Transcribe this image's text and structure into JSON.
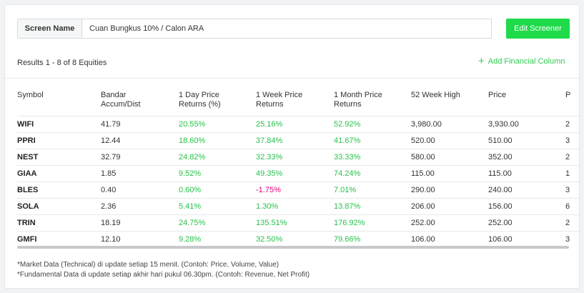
{
  "screen": {
    "label": "Screen Name",
    "value": "Cuan Bungkus 10% / Calon ARA"
  },
  "edit_button": "Edit Screener",
  "results_text": "Results 1 - 8 of 8 Equities",
  "add_column": {
    "icon": "plus-icon",
    "label": "Add Financial Column"
  },
  "colors": {
    "accent": "#1fdb4a",
    "positive": "#27c24a",
    "negative": "#e6007e"
  },
  "table": {
    "columns": [
      "Symbol",
      "Bandar\nAccum/Dist",
      "1 Day Price\nReturns (%)",
      "1 Week Price\nReturns",
      "1 Month Price\nReturns",
      "52 Week High",
      "Price",
      "P"
    ],
    "rows": [
      {
        "symbol": "WIFI",
        "bandar": "41.79",
        "day": "20.55%",
        "week": "25.16%",
        "month": "52.92%",
        "high52": "3,980.00",
        "price": "3,930.00",
        "p": "2"
      },
      {
        "symbol": "PPRI",
        "bandar": "12.44",
        "day": "18.60%",
        "week": "37.84%",
        "month": "41.67%",
        "high52": "520.00",
        "price": "510.00",
        "p": "3"
      },
      {
        "symbol": "NEST",
        "bandar": "32.79",
        "day": "24.82%",
        "week": "32.33%",
        "month": "33.33%",
        "high52": "580.00",
        "price": "352.00",
        "p": "2"
      },
      {
        "symbol": "GIAA",
        "bandar": "1.85",
        "day": "9.52%",
        "week": "49.35%",
        "month": "74.24%",
        "high52": "115.00",
        "price": "115.00",
        "p": "1"
      },
      {
        "symbol": "BLES",
        "bandar": "0.40",
        "day": "0.60%",
        "week": "-1.75%",
        "month": "7.01%",
        "high52": "290.00",
        "price": "240.00",
        "p": "3"
      },
      {
        "symbol": "SOLA",
        "bandar": "2.36",
        "day": "5.41%",
        "week": "1.30%",
        "month": "13.87%",
        "high52": "206.00",
        "price": "156.00",
        "p": "6"
      },
      {
        "symbol": "TRIN",
        "bandar": "18.19",
        "day": "24.75%",
        "week": "135.51%",
        "month": "176.92%",
        "high52": "252.00",
        "price": "252.00",
        "p": "2"
      },
      {
        "symbol": "GMFI",
        "bandar": "12.10",
        "day": "9.28%",
        "week": "32.50%",
        "month": "79.66%",
        "high52": "106.00",
        "price": "106.00",
        "p": "3"
      }
    ]
  },
  "notes": [
    "*Market Data (Technical) di update setiap 15 menit. (Contoh: Price, Volume, Value)",
    "*Fundamental Data di update setiap akhir hari pukul 06.30pm. (Contoh: Revenue, Net Profit)"
  ]
}
